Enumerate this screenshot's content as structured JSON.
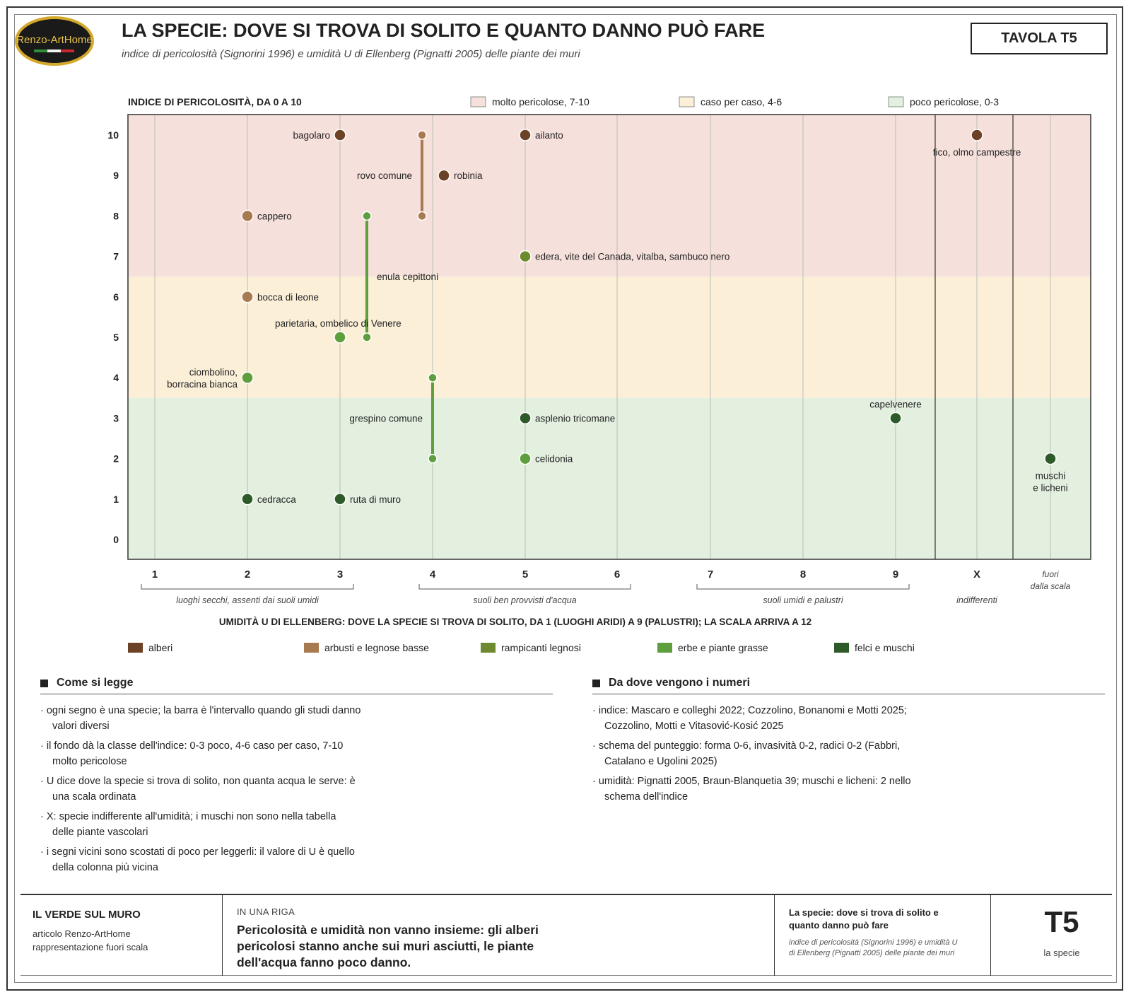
{
  "header": {
    "logo_text": "Renzo-ArtHome",
    "title": "LA SPECIE: DOVE SI TROVA DI SOLITO E QUANTO DANNO PUÒ FARE",
    "subtitle": "indice di pericolosità (Signorini 1996) e umidità U di Ellenberg (Pignatti 2005) delle piante dei muri",
    "badge": "TAVOLA T5"
  },
  "chart_data": {
    "type": "scatter",
    "ylabel": "INDICE DI PERICOLOSITÀ, DA 0 A 10",
    "xlabel": "UMIDITÀ U DI ELLENBERG: DOVE LA SPECIE SI TROVA DI SOLITO, DA 1 (LUOGHI ARIDI) A 9 (PALUSTRI); LA SCALA ARRIVA A 12",
    "ylim": [
      0,
      10
    ],
    "y_ticks": [
      "0",
      "1",
      "2",
      "3",
      "4",
      "5",
      "6",
      "7",
      "8",
      "9",
      "10"
    ],
    "x_ticks": [
      "1",
      "2",
      "3",
      "4",
      "5",
      "6",
      "7",
      "8",
      "9",
      "X",
      "fuori dalla scala"
    ],
    "bands": [
      {
        "label": "molto pericolose, 7-10",
        "from": 6.5,
        "to": 10.5,
        "color": "#f6e0dc"
      },
      {
        "label": "caso per caso, 4-6",
        "from": 3.5,
        "to": 6.5,
        "color": "#fbefd8"
      },
      {
        "label": "poco pericolose, 0-3",
        "from": -0.5,
        "to": 3.5,
        "color": "#e3f0e0"
      }
    ],
    "x_groups": [
      {
        "label": "luoghi secchi, assenti dai suoli umidi",
        "from": 1,
        "to": 3
      },
      {
        "label": "suoli ben provvisti d'acqua",
        "from": 4,
        "to": 6
      },
      {
        "label": "suoli umidi e palustri",
        "from": 7,
        "to": 9
      },
      {
        "label": "indifferenti",
        "x": "X"
      }
    ],
    "categories": [
      {
        "name": "alberi",
        "color": "#6b4226"
      },
      {
        "name": "arbusti e legnose basse",
        "color": "#a87a52"
      },
      {
        "name": "rampicanti legnosi",
        "color": "#6e8a2e"
      },
      {
        "name": "erbe e piante grasse",
        "color": "#5e9e3c"
      },
      {
        "name": "felci e muschi",
        "color": "#2e5a2a"
      }
    ],
    "points": [
      {
        "label": "bagolaro",
        "u": "3",
        "y": 10,
        "category": "alberi"
      },
      {
        "label": "ailanto",
        "u": "5",
        "y": 10,
        "category": "alberi"
      },
      {
        "label": "robinia",
        "u": "4",
        "y": 9,
        "category": "alberi"
      },
      {
        "label": "fico, olmo campestre",
        "u": "X",
        "y": 10,
        "category": "alberi"
      },
      {
        "label": "cappero",
        "u": "2",
        "y": 8,
        "category": "arbusti e legnose basse"
      },
      {
        "label": "bocca di leone",
        "u": "2",
        "y": 6,
        "category": "arbusti e legnose basse"
      },
      {
        "label": "rovo comune",
        "u": "4",
        "y": [
          8,
          10
        ],
        "category": "arbusti e legnose basse"
      },
      {
        "label": "edera, vite del Canada, vitalba, sambuco nero",
        "u": "5",
        "y": 7,
        "category": "rampicanti legnosi"
      },
      {
        "label": "enula cepittoni",
        "u": "3",
        "y": [
          5,
          8
        ],
        "category": "erbe e piante grasse"
      },
      {
        "label": "parietaria, ombelico di Venere",
        "u": "3",
        "y": 5,
        "category": "erbe e piante grasse"
      },
      {
        "label": "ciombolino, borracina bianca",
        "u": "2",
        "y": 4,
        "category": "erbe e piante grasse"
      },
      {
        "label": "grespino comune",
        "u": "4",
        "y": [
          2,
          4
        ],
        "category": "erbe e piante grasse"
      },
      {
        "label": "celidonia",
        "u": "5",
        "y": 2,
        "category": "erbe e piante grasse"
      },
      {
        "label": "asplenio tricomane",
        "u": "5",
        "y": 3,
        "category": "felci e muschi"
      },
      {
        "label": "capelvenere",
        "u": "9",
        "y": 3,
        "category": "felci e muschi"
      },
      {
        "label": "cedracca",
        "u": "2",
        "y": 1,
        "category": "felci e muschi"
      },
      {
        "label": "ruta di muro",
        "u": "3",
        "y": 1,
        "category": "felci e muschi"
      },
      {
        "label": "muschi e licheni",
        "u": "fuori dalla scala",
        "y": 2,
        "category": "felci e muschi"
      }
    ]
  },
  "how_to_read": {
    "title": "Come si legge",
    "items": [
      "ogni segno è una specie; la barra è l'intervallo quando gli studi danno valori diversi",
      "il fondo dà la classe dell'indice: 0-3 poco, 4-6 caso per caso, 7-10 molto pericolose",
      "U dice dove la specie si trova di solito, non quanta acqua le serve: è una scala ordinata",
      "X: specie indifferente all'umidità; i muschi non sono nella tabella delle piante vascolari",
      "i segni vicini sono scostati di poco per leggerli: il valore di U è quello della colonna più vicina"
    ]
  },
  "sources": {
    "title": "Da dove vengono i numeri",
    "items": [
      "indice: Mascaro e colleghi 2022; Cozzolino, Bonanomi e Motti 2025; Cozzolino, Motti e Vitasović-Kosić 2025",
      "schema del punteggio: forma 0-6, invasività 0-2, radici 0-2 (Fabbri, Catalano e Ugolini 2025)",
      "umidità: Pignatti 2005, Braun-Blanquetia 39; muschi e licheni: 2 nello schema dell'indice"
    ]
  },
  "footer": {
    "col1_title": "IL VERDE SUL MURO",
    "col1_line1": "articolo Renzo-ArtHome",
    "col1_line2": "rappresentazione fuori scala",
    "col2_label": "IN UNA RIGA",
    "col2_text": "Pericolosità e umidità non vanno insieme: gli alberi pericolosi stanno anche sui muri asciutti, le piante dell'acqua fanno poco danno.",
    "col3_title": "La specie: dove si trova di solito e quanto danno può fare",
    "col3_sub": "indice di pericolosità (Signorini 1996) e umidità U di Ellenberg (Pignatti 2005) delle piante dei muri",
    "col4_code": "T5",
    "col4_label": "la specie"
  }
}
